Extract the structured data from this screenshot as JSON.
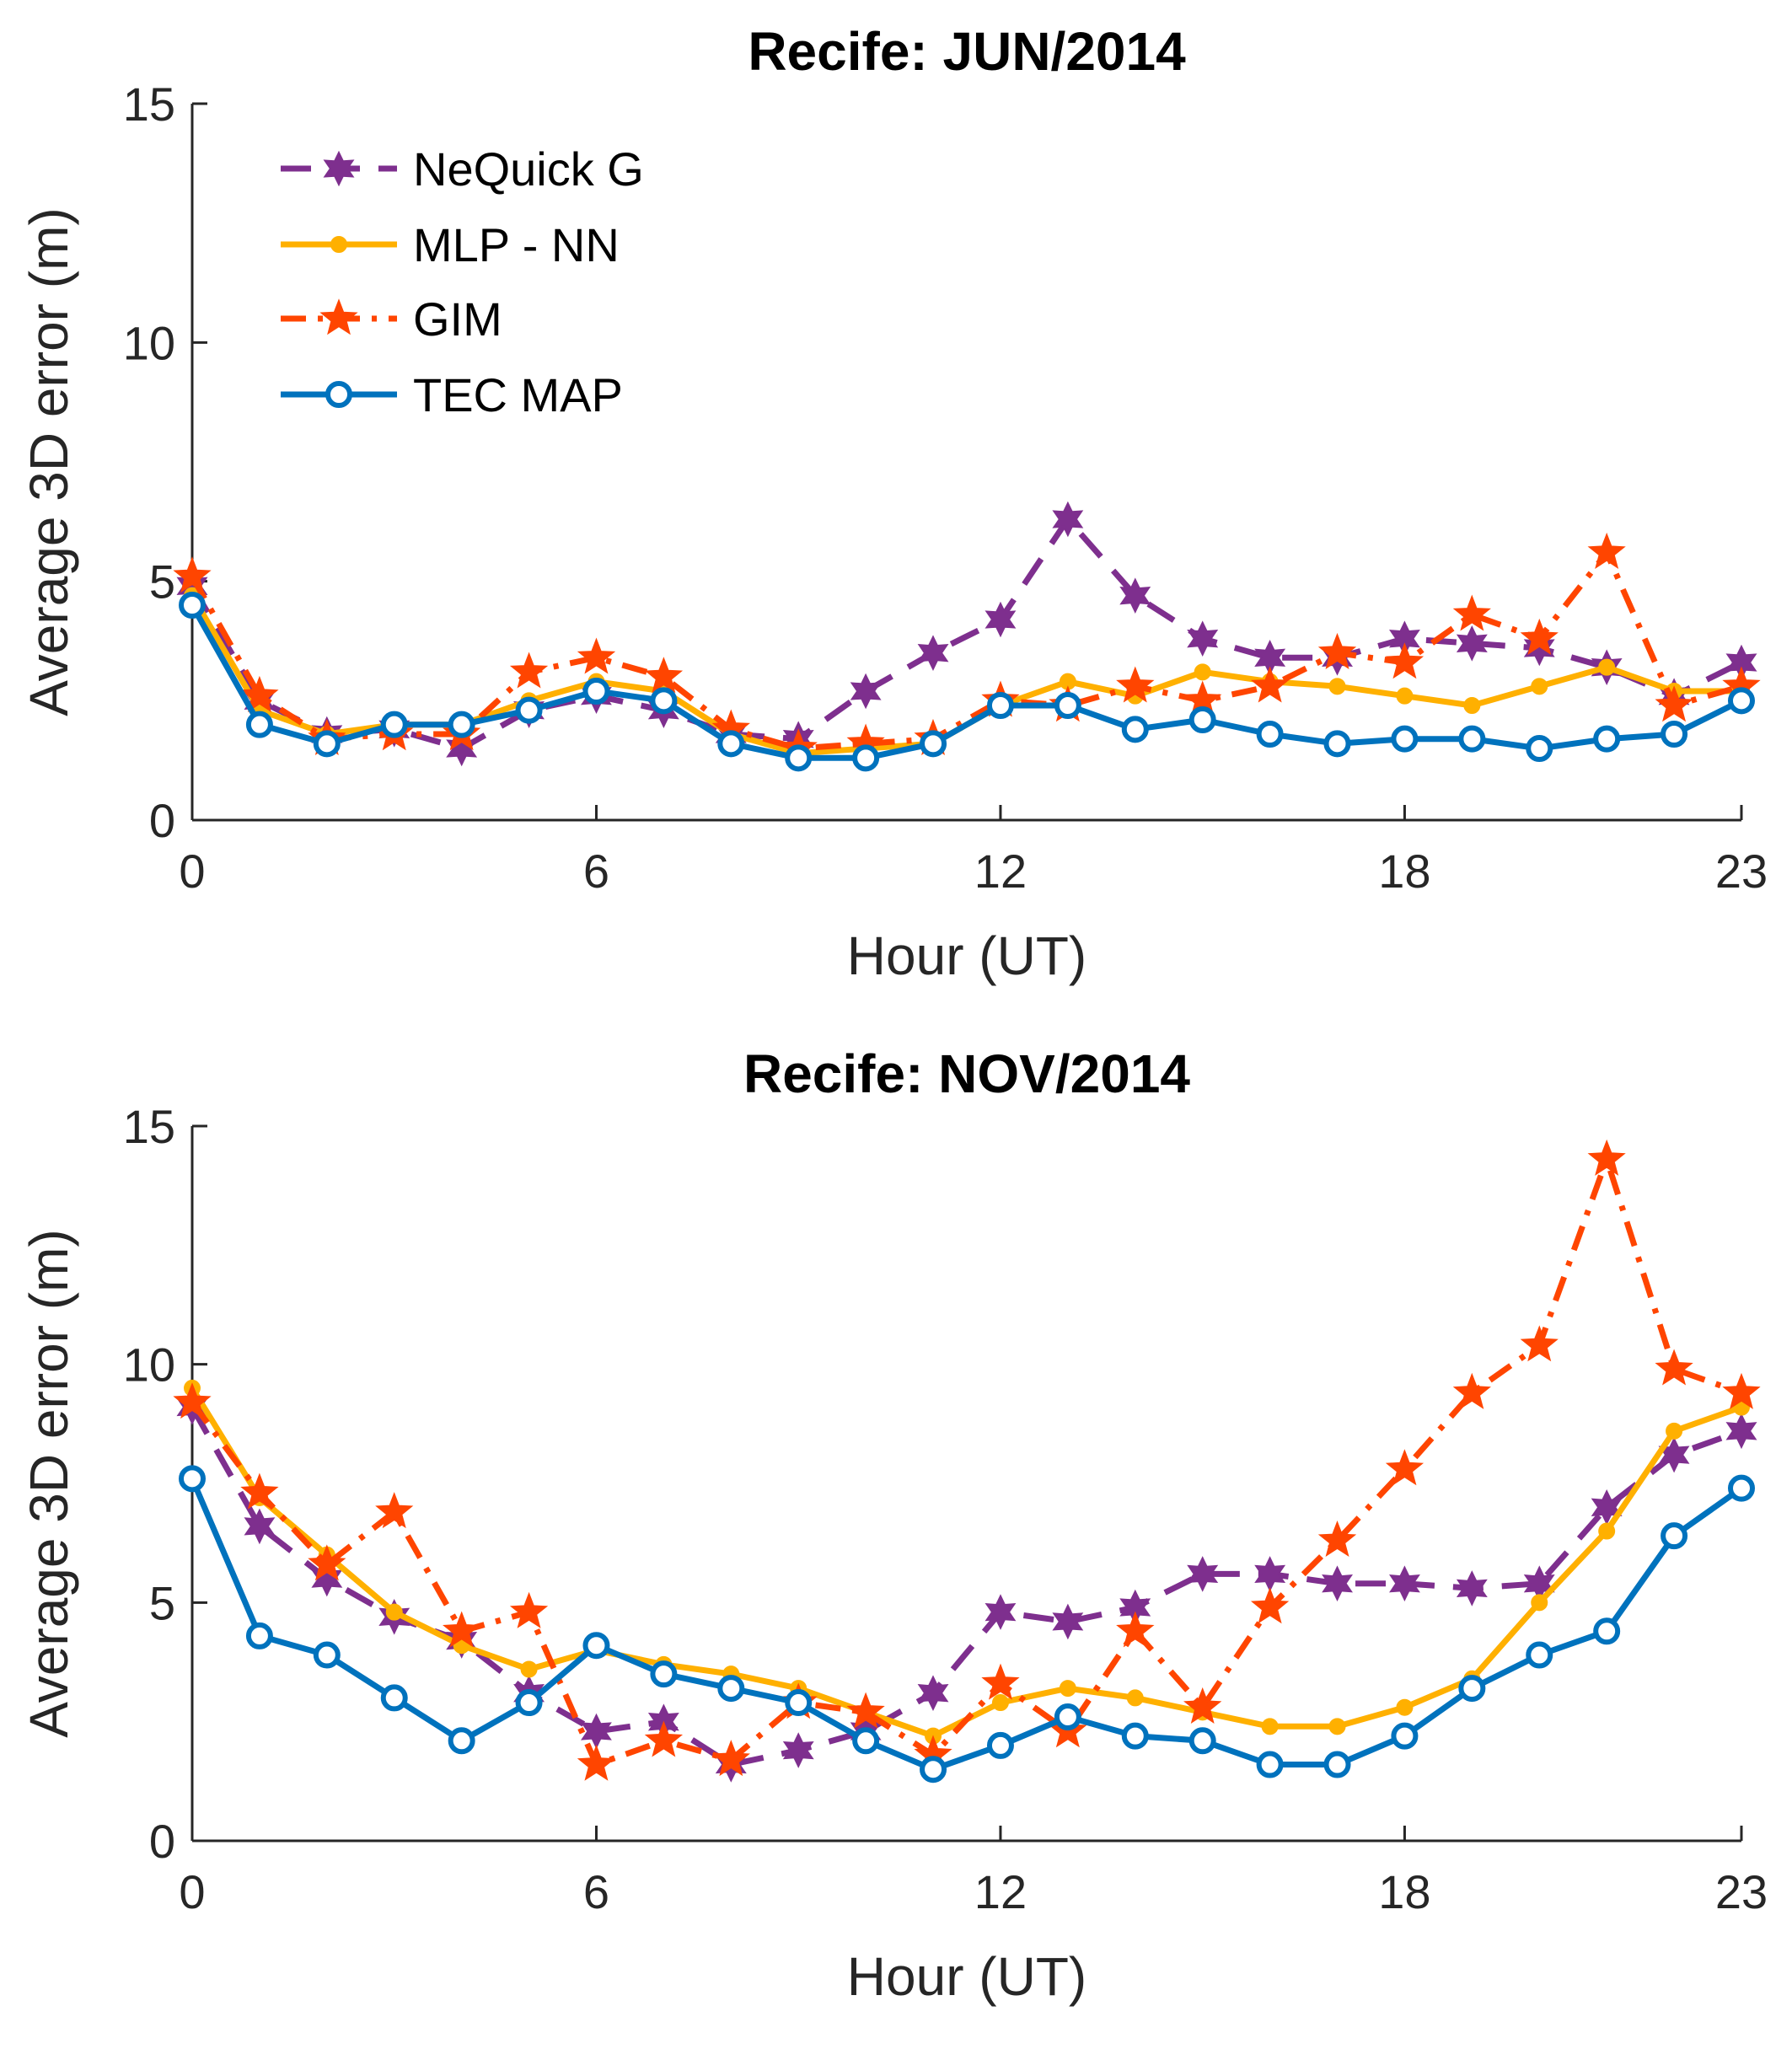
{
  "colors": {
    "nequick": "#7E2F8E",
    "mlp": "#FFB000",
    "gim": "#FF4500",
    "tec": "#0072BD",
    "axis": "#262626"
  },
  "chart_data": [
    {
      "type": "line",
      "title": "Recife: JUN/2014",
      "xlabel": "Hour (UT)",
      "ylabel": "Average 3D error (m)",
      "xlim": [
        0,
        23
      ],
      "ylim": [
        0,
        15
      ],
      "xticks": [
        0,
        6,
        12,
        18,
        23
      ],
      "yticks": [
        0,
        5,
        10,
        15
      ],
      "legend": "top-left",
      "x": [
        0,
        1,
        2,
        3,
        4,
        5,
        6,
        7,
        8,
        9,
        10,
        11,
        12,
        13,
        14,
        15,
        16,
        17,
        18,
        19,
        20,
        21,
        22,
        23
      ],
      "series": [
        {
          "name": "NeQuick G",
          "key": "nequick",
          "dash": "dashed",
          "marker": "hexastar",
          "values": [
            4.9,
            2.5,
            1.8,
            1.9,
            1.5,
            2.3,
            2.6,
            2.3,
            1.8,
            1.7,
            2.7,
            3.5,
            4.2,
            6.3,
            4.7,
            3.8,
            3.4,
            3.4,
            3.8,
            3.7,
            3.6,
            3.2,
            2.6,
            3.3
          ]
        },
        {
          "name": "MLP - NN",
          "key": "mlp",
          "dash": "solid",
          "marker": "dot",
          "values": [
            4.7,
            2.3,
            1.8,
            2.0,
            2.0,
            2.5,
            2.9,
            2.7,
            1.8,
            1.4,
            1.5,
            1.6,
            2.4,
            2.9,
            2.6,
            3.1,
            2.9,
            2.8,
            2.6,
            2.4,
            2.8,
            3.2,
            2.7,
            2.7
          ]
        },
        {
          "name": "GIM",
          "key": "gim",
          "dash": "dashdot",
          "marker": "star",
          "values": [
            5.1,
            2.6,
            1.7,
            1.8,
            1.8,
            3.1,
            3.4,
            3.0,
            1.9,
            1.5,
            1.6,
            1.7,
            2.5,
            2.4,
            2.8,
            2.5,
            2.8,
            3.5,
            3.3,
            4.3,
            3.8,
            5.6,
            2.4,
            2.8
          ]
        },
        {
          "name": "TEC MAP",
          "key": "tec",
          "dash": "solid",
          "marker": "circle",
          "values": [
            4.5,
            2.0,
            1.6,
            2.0,
            2.0,
            2.3,
            2.7,
            2.5,
            1.6,
            1.3,
            1.3,
            1.6,
            2.4,
            2.4,
            1.9,
            2.1,
            1.8,
            1.6,
            1.7,
            1.7,
            1.5,
            1.7,
            1.8,
            2.5
          ]
        }
      ]
    },
    {
      "type": "line",
      "title": "Recife: NOV/2014",
      "xlabel": "Hour (UT)",
      "ylabel": "Average 3D error (m)",
      "xlim": [
        0,
        23
      ],
      "ylim": [
        0,
        15
      ],
      "xticks": [
        0,
        6,
        12,
        18,
        23
      ],
      "yticks": [
        0,
        5,
        10,
        15
      ],
      "x": [
        0,
        1,
        2,
        3,
        4,
        5,
        6,
        7,
        8,
        9,
        10,
        11,
        12,
        13,
        14,
        15,
        16,
        17,
        18,
        19,
        20,
        21,
        22,
        23
      ],
      "series": [
        {
          "name": "NeQuick G",
          "key": "nequick",
          "dash": "dashed",
          "marker": "hexastar",
          "values": [
            9.1,
            6.6,
            5.5,
            4.7,
            4.2,
            3.1,
            2.3,
            2.5,
            1.6,
            1.9,
            2.3,
            3.1,
            4.8,
            4.6,
            4.9,
            5.6,
            5.6,
            5.4,
            5.4,
            5.3,
            5.4,
            7.0,
            8.1,
            8.6
          ]
        },
        {
          "name": "MLP - NN",
          "key": "mlp",
          "dash": "solid",
          "marker": "dot",
          "values": [
            9.5,
            7.2,
            6.0,
            4.8,
            4.1,
            3.6,
            4.0,
            3.7,
            3.5,
            3.2,
            2.7,
            2.2,
            2.9,
            3.2,
            3.0,
            2.7,
            2.4,
            2.4,
            2.8,
            3.4,
            5.0,
            6.5,
            8.6,
            9.1
          ]
        },
        {
          "name": "GIM",
          "key": "gim",
          "dash": "dashdot",
          "marker": "star",
          "values": [
            9.2,
            7.3,
            5.8,
            6.9,
            4.4,
            4.8,
            1.6,
            2.1,
            1.7,
            2.9,
            2.7,
            1.8,
            3.3,
            2.3,
            4.4,
            2.8,
            4.9,
            6.3,
            7.8,
            9.4,
            10.4,
            14.3,
            9.9,
            9.4
          ]
        },
        {
          "name": "TEC MAP",
          "key": "tec",
          "dash": "solid",
          "marker": "circle",
          "values": [
            7.6,
            4.3,
            3.9,
            3.0,
            2.1,
            2.9,
            4.1,
            3.5,
            3.2,
            2.9,
            2.1,
            1.5,
            2.0,
            2.6,
            2.2,
            2.1,
            1.6,
            1.6,
            2.2,
            3.2,
            3.9,
            4.4,
            6.4,
            7.4
          ]
        }
      ]
    }
  ]
}
